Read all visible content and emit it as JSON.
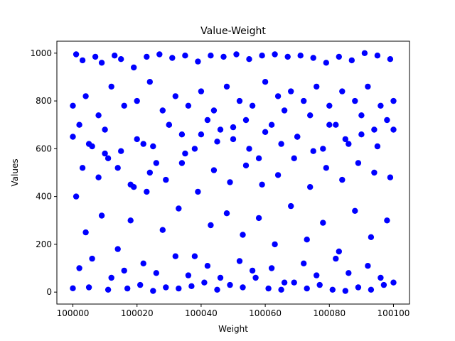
{
  "chart_data": {
    "type": "scatter",
    "title": "Value-Weight",
    "xlabel": "Weight",
    "ylabel": "Values",
    "xlim": [
      99995,
      100105
    ],
    "ylim": [
      -50,
      1050
    ],
    "x_ticks": [
      100000,
      100020,
      100040,
      100060,
      100080,
      100100
    ],
    "y_ticks": [
      0,
      200,
      400,
      600,
      800,
      1000
    ],
    "x_tick_labels": [
      "100000",
      "100020",
      "100040",
      "100060",
      "100080",
      "100100"
    ],
    "y_tick_labels": [
      "0",
      "200",
      "400",
      "600",
      "800",
      "1000"
    ],
    "grid": false,
    "legend": "none",
    "marker_color": "#0000ff",
    "series": [
      {
        "x": [
          100000,
          100001,
          100003,
          100005,
          100007,
          100009,
          100011,
          100013,
          100015,
          100017,
          100019,
          100021,
          100023,
          100025,
          100027,
          100029,
          100031,
          100033,
          100035,
          100037,
          100039,
          100041,
          100043,
          100045,
          100047,
          100049,
          100051,
          100053,
          100055,
          100057,
          100059,
          100061,
          100063,
          100065,
          100067,
          100069,
          100071,
          100073,
          100075,
          100077,
          100079,
          100081,
          100083,
          100085,
          100087,
          100089,
          100091,
          100093,
          100095,
          100097,
          100099,
          100100,
          100000,
          100002,
          100004,
          100006,
          100008,
          100010,
          100012,
          100014,
          100016,
          100018,
          100020,
          100022,
          100024,
          100026,
          100028,
          100030,
          100032,
          100034,
          100036,
          100038,
          100040,
          100042,
          100044,
          100046,
          100048,
          100050,
          100052,
          100054,
          100056,
          100058,
          100060,
          100062,
          100064,
          100066,
          100068,
          100070,
          100072,
          100074,
          100076,
          100078,
          100080,
          100082,
          100084,
          100086,
          100088,
          100090,
          100092,
          100094,
          100096,
          100098,
          100100,
          100001,
          100004,
          100009,
          100014,
          100018,
          100023,
          100028,
          100033,
          100038,
          100043,
          100048,
          100053,
          100058,
          100063,
          100068,
          100073,
          100078,
          100083,
          100088,
          100093,
          100098,
          100002,
          100006,
          100012,
          100016,
          100022,
          100026,
          100032,
          100036,
          100042,
          100046,
          100052,
          100056,
          100062,
          100066,
          100072,
          100076,
          100082,
          100086,
          100092,
          100096,
          100003,
          100008,
          100011,
          100019,
          100024,
          100029,
          100034,
          100039,
          100044,
          100049,
          100054,
          100059,
          100064,
          100069,
          100074,
          100079,
          100084,
          100089,
          100094,
          100099,
          100000,
          100005,
          100010,
          100015,
          100020,
          100025,
          100030,
          100035,
          100040,
          100045,
          100050,
          100055,
          100060,
          100065,
          100070,
          100075,
          100080,
          100085,
          100090,
          100095,
          100100
        ],
        "y": [
          16,
          995,
          970,
          20,
          985,
          960,
          10,
          990,
          975,
          15,
          940,
          30,
          985,
          5,
          995,
          20,
          980,
          15,
          990,
          25,
          965,
          40,
          990,
          10,
          985,
          30,
          995,
          20,
          975,
          60,
          990,
          15,
          995,
          10,
          985,
          40,
          990,
          15,
          980,
          30,
          960,
          10,
          985,
          5,
          970,
          20,
          1000,
          10,
          990,
          30,
          975,
          40,
          780,
          700,
          820,
          610,
          740,
          580,
          860,
          520,
          780,
          450,
          800,
          620,
          880,
          540,
          760,
          700,
          820,
          660,
          780,
          600,
          840,
          720,
          760,
          680,
          860,
          640,
          800,
          720,
          780,
          560,
          880,
          700,
          820,
          760,
          840,
          650,
          800,
          740,
          860,
          600,
          780,
          700,
          840,
          620,
          800,
          740,
          860,
          680,
          780,
          720,
          800,
          400,
          250,
          320,
          180,
          300,
          420,
          260,
          350,
          150,
          280,
          330,
          240,
          310,
          200,
          360,
          220,
          290,
          170,
          340,
          230,
          300,
          100,
          140,
          60,
          90,
          120,
          80,
          150,
          70,
          110,
          60,
          130,
          90,
          100,
          40,
          120,
          70,
          140,
          80,
          110,
          60,
          520,
          480,
          560,
          440,
          500,
          470,
          540,
          420,
          510,
          460,
          530,
          450,
          490,
          560,
          440,
          520,
          470,
          540,
          500,
          480,
          650,
          620,
          680,
          590,
          640,
          610,
          700,
          580,
          660,
          630,
          690,
          600,
          670,
          620,
          650,
          590,
          700,
          640,
          660,
          610,
          680
        ]
      }
    ]
  }
}
